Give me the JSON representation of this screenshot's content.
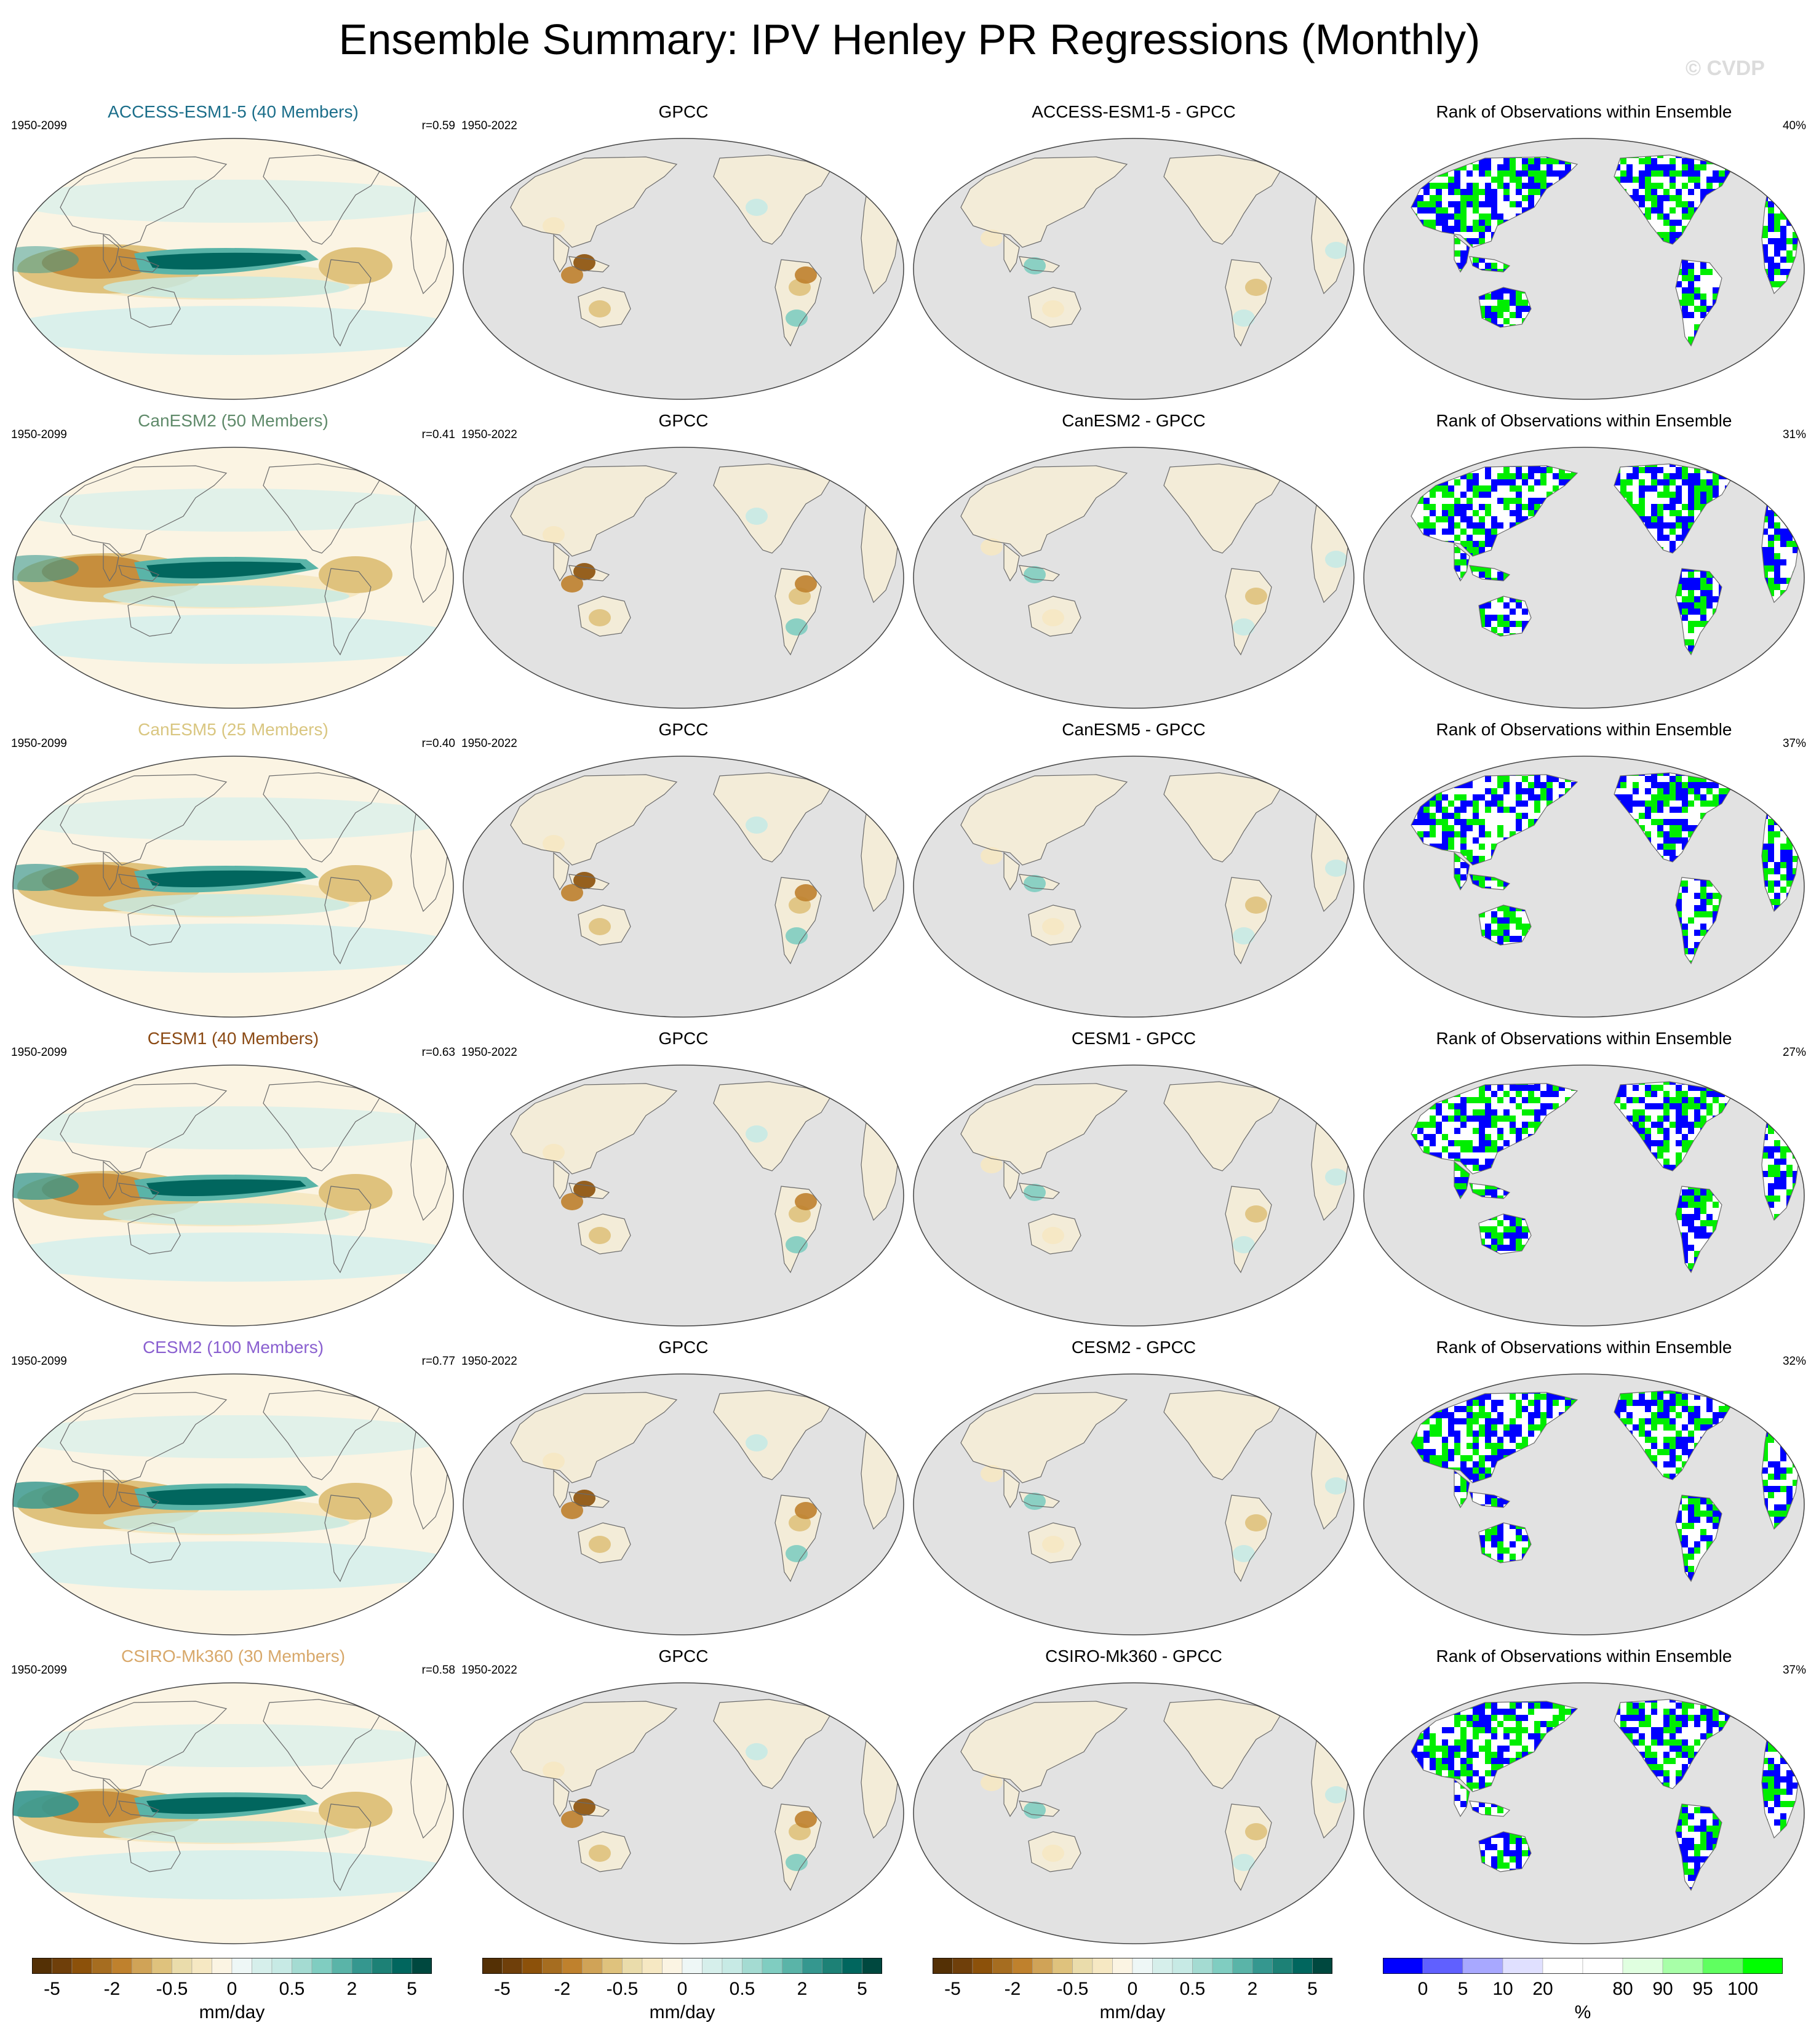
{
  "title": "Ensemble Summary: IPV Henley PR Regressions (Monthly)",
  "watermark": "© CVDP",
  "column_titles": {
    "obs": "GPCC",
    "rank": "Rank of Observations within Ensemble"
  },
  "colors": {
    "land_gray": "#e2e2e2",
    "rank_blue": "#0000ff",
    "rank_green": "#00ee00",
    "coast": "#6a6a6a"
  },
  "rows": [
    {
      "model": "ACCESS-ESM1-5 (40 Members)",
      "model_color": "#1b6e8a",
      "years": "1950-2099",
      "r": "r=0.59",
      "obs_years": "1950-2022",
      "diff_title": "ACCESS-ESM1-5 - GPCC",
      "rank_pct": "40%"
    },
    {
      "model": "CanESM2 (50 Members)",
      "model_color": "#5f8a6a",
      "years": "1950-2099",
      "r": "r=0.41",
      "obs_years": "1950-2022",
      "diff_title": "CanESM2 - GPCC",
      "rank_pct": "31%"
    },
    {
      "model": "CanESM5 (25 Members)",
      "model_color": "#d9c680",
      "years": "1950-2099",
      "r": "r=0.40",
      "obs_years": "1950-2022",
      "diff_title": "CanESM5 - GPCC",
      "rank_pct": "37%"
    },
    {
      "model": "CESM1 (40 Members)",
      "model_color": "#8b4a14",
      "years": "1950-2099",
      "r": "r=0.63",
      "obs_years": "1950-2022",
      "diff_title": "CESM1 - GPCC",
      "rank_pct": "27%"
    },
    {
      "model": "CESM2 (100 Members)",
      "model_color": "#8a60d0",
      "years": "1950-2099",
      "r": "r=0.77",
      "obs_years": "1950-2022",
      "diff_title": "CESM2 - GPCC",
      "rank_pct": "32%"
    },
    {
      "model": "CSIRO-Mk360 (30 Members)",
      "model_color": "#d8a86a",
      "years": "1950-2099",
      "r": "r=0.58",
      "obs_years": "1950-2022",
      "diff_title": "CSIRO-Mk360 - GPCC",
      "rank_pct": "37%"
    }
  ],
  "colorbar_div": {
    "colors": [
      "#543005",
      "#6f3f0a",
      "#8c510a",
      "#a66d20",
      "#bf812d",
      "#d0a357",
      "#dfc27d",
      "#eadcab",
      "#f6e8c3",
      "#fbf4e3",
      "#eef7f6",
      "#d6efeb",
      "#c7eae5",
      "#a4dbd2",
      "#80cdc1",
      "#5ab4a8",
      "#35978f",
      "#1d8176",
      "#01665e",
      "#00483f"
    ],
    "ticks": [
      "-5",
      "-2",
      "-0.5",
      "0",
      "0.5",
      "2",
      "5"
    ],
    "tick_positions": [
      1,
      4,
      7,
      10,
      13,
      16,
      19
    ],
    "unit": "mm/day"
  },
  "colorbar_rank": {
    "colors": [
      "#0000ff",
      "#6060ff",
      "#a8a8ff",
      "#e0e0ff",
      "#ffffff",
      "#ffffff",
      "#e0ffe0",
      "#a8ffa8",
      "#60ff60",
      "#00ff00"
    ],
    "ticks": [
      "0",
      "5",
      "10",
      "20",
      "80",
      "90",
      "95",
      "100"
    ],
    "tick_positions": [
      1,
      2,
      3,
      4,
      6,
      7,
      8,
      9
    ],
    "unit": "%"
  }
}
